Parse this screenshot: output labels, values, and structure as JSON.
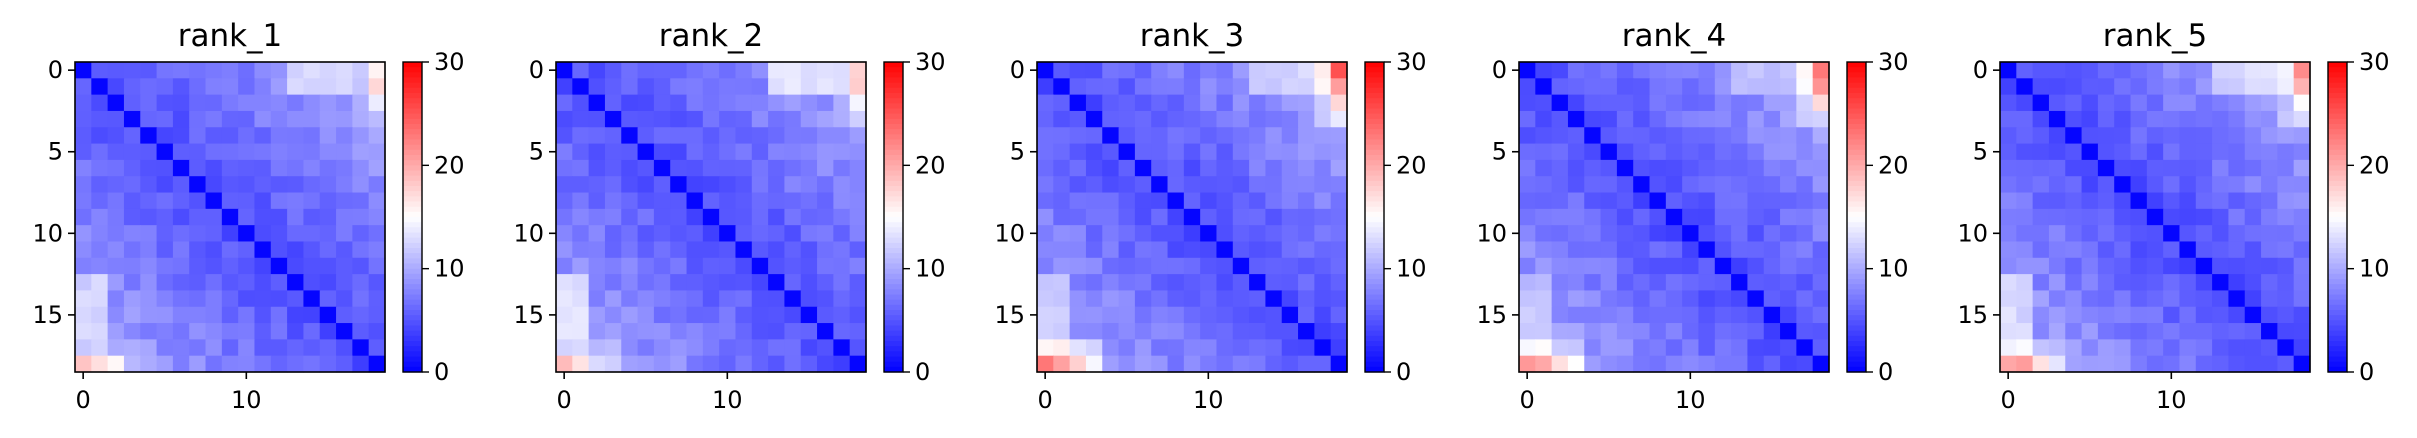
{
  "chart_data": [
    {
      "type": "heatmap",
      "title": "rank_1",
      "size": 19,
      "x_ticks": [
        "0",
        "10"
      ],
      "y_ticks": [
        "0",
        "5",
        "10",
        "15"
      ],
      "colorbar": {
        "min": 0,
        "max": 30,
        "ticks": [
          "0",
          "10",
          "20",
          "30"
        ],
        "colormap": "bwr"
      }
    },
    {
      "type": "heatmap",
      "title": "rank_2",
      "size": 19,
      "x_ticks": [
        "0",
        "10"
      ],
      "y_ticks": [
        "0",
        "5",
        "10",
        "15"
      ],
      "colorbar": {
        "min": 0,
        "max": 30,
        "ticks": [
          "0",
          "10",
          "20",
          "30"
        ],
        "colormap": "bwr"
      }
    },
    {
      "type": "heatmap",
      "title": "rank_3",
      "size": 19,
      "x_ticks": [
        "0",
        "10"
      ],
      "y_ticks": [
        "0",
        "5",
        "10",
        "15"
      ],
      "colorbar": {
        "min": 0,
        "max": 30,
        "ticks": [
          "0",
          "10",
          "20",
          "30"
        ],
        "colormap": "bwr"
      }
    },
    {
      "type": "heatmap",
      "title": "rank_4",
      "size": 19,
      "x_ticks": [
        "0",
        "10"
      ],
      "y_ticks": [
        "0",
        "5",
        "10",
        "15"
      ],
      "colorbar": {
        "min": 0,
        "max": 30,
        "ticks": [
          "0",
          "10",
          "20",
          "30"
        ],
        "colormap": "bwr"
      }
    },
    {
      "type": "heatmap",
      "title": "rank_5",
      "size": 19,
      "x_ticks": [
        "0",
        "10"
      ],
      "y_ticks": [
        "0",
        "5",
        "10",
        "15"
      ],
      "colorbar": {
        "min": 0,
        "max": 30,
        "ticks": [
          "0",
          "10",
          "20",
          "30"
        ],
        "colormap": "bwr"
      }
    }
  ]
}
